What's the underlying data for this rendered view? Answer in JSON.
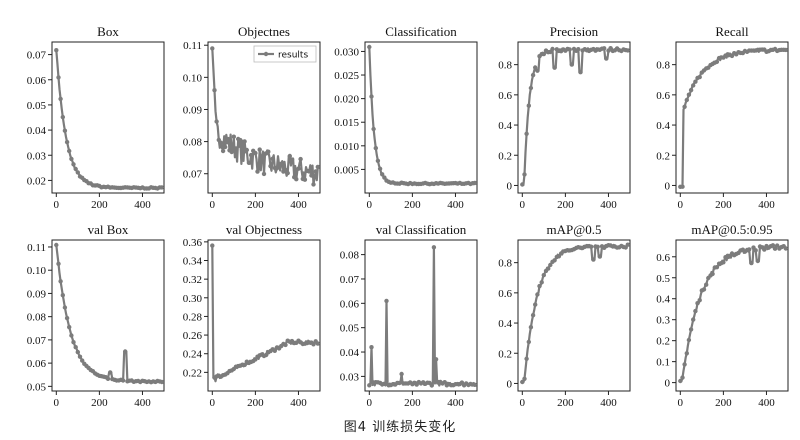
{
  "caption": "图4   训练损失变化",
  "series_color": "#7c7c7c",
  "chart_data": [
    {
      "type": "line",
      "title": "Box",
      "xlim": [
        -20,
        500
      ],
      "ylim": [
        0.015,
        0.075
      ],
      "xticks": [
        0,
        200,
        400
      ],
      "yticks": [
        0.02,
        0.03,
        0.04,
        0.05,
        0.06,
        0.07
      ],
      "yticklabels": [
        "0.02",
        "0.03",
        "0.04",
        "0.05",
        "0.06",
        "0.07"
      ],
      "model": {
        "kind": "decay",
        "start": 0.072,
        "end": 0.017,
        "tau": 45
      },
      "legend": null
    },
    {
      "type": "line",
      "title": "Objectnes",
      "xlim": [
        -20,
        500
      ],
      "ylim": [
        0.064,
        0.111
      ],
      "xticks": [
        0,
        200,
        400
      ],
      "yticks": [
        0.07,
        0.08,
        0.09,
        0.1,
        0.11
      ],
      "yticklabels": [
        "0.07",
        "0.08",
        "0.09",
        "0.10",
        "0.11"
      ],
      "model": {
        "kind": "noisy",
        "start": 0.109,
        "mid": 0.083,
        "end": 0.069,
        "tau": 200,
        "noise": 0.004
      },
      "legend": {
        "label": "results",
        "position": "top-right"
      }
    },
    {
      "type": "line",
      "title": "Classification",
      "xlim": [
        -20,
        500
      ],
      "ylim": [
        0.0,
        0.032
      ],
      "xticks": [
        0,
        200,
        400
      ],
      "yticks": [
        0.005,
        0.01,
        0.015,
        0.02,
        0.025,
        0.03
      ],
      "yticklabels": [
        "0.005",
        "0.010",
        "0.015",
        "0.020",
        "0.025",
        "0.030"
      ],
      "model": {
        "kind": "decay",
        "start": 0.031,
        "end": 0.002,
        "tau": 22
      },
      "legend": null
    },
    {
      "type": "line",
      "title": "Precision",
      "xlim": [
        -20,
        500
      ],
      "ylim": [
        -0.05,
        0.95
      ],
      "xticks": [
        0,
        200,
        400
      ],
      "yticks": [
        0,
        0.2,
        0.4,
        0.6,
        0.8
      ],
      "yticklabels": [
        "0",
        "0.2",
        "0.4",
        "0.6",
        "0.8"
      ],
      "model": {
        "kind": "rise",
        "end": 0.9,
        "tau": 25,
        "dips": [
          [
            70,
            0.76
          ],
          [
            150,
            0.78
          ],
          [
            230,
            0.8
          ],
          [
            270,
            0.75
          ],
          [
            390,
            0.84
          ]
        ]
      },
      "legend": null
    },
    {
      "type": "line",
      "title": "Recall",
      "xlim": [
        -20,
        500
      ],
      "ylim": [
        -0.05,
        0.95
      ],
      "xticks": [
        0,
        200,
        400
      ],
      "yticks": [
        0,
        0.2,
        0.4,
        0.6,
        0.8
      ],
      "yticklabels": [
        "0",
        "0.2",
        "0.4",
        "0.6",
        "0.8"
      ],
      "model": {
        "kind": "rise",
        "end": 0.9,
        "tau": 90,
        "jump": 0.5
      },
      "legend": null
    },
    {
      "type": "line",
      "title": "val Box",
      "xlim": [
        -20,
        500
      ],
      "ylim": [
        0.048,
        0.113
      ],
      "xticks": [
        0,
        200,
        400
      ],
      "yticks": [
        0.05,
        0.06,
        0.07,
        0.08,
        0.09,
        0.1,
        0.11
      ],
      "yticklabels": [
        "0.05",
        "0.06",
        "0.07",
        "0.08",
        "0.09",
        "0.10",
        "0.11"
      ],
      "model": {
        "kind": "decay",
        "start": 0.111,
        "end": 0.052,
        "tau": 65,
        "spikes": [
          [
            320,
            0.065
          ],
          [
            250,
            0.056
          ]
        ]
      },
      "legend": null
    },
    {
      "type": "line",
      "title": "val Objectness",
      "xlim": [
        -20,
        500
      ],
      "ylim": [
        0.2,
        0.362
      ],
      "xticks": [
        0,
        200,
        400
      ],
      "yticks": [
        0.22,
        0.24,
        0.26,
        0.28,
        0.3,
        0.32,
        0.34,
        0.36
      ],
      "yticklabels": [
        "0.22",
        "0.24",
        "0.26",
        "0.28",
        "0.30",
        "0.32",
        "0.34",
        "0.36"
      ],
      "model": {
        "kind": "valobj",
        "start": 0.356,
        "low": 0.215,
        "end": 0.252
      },
      "legend": null
    },
    {
      "type": "line",
      "title": "val Classification",
      "xlim": [
        -20,
        500
      ],
      "ylim": [
        0.024,
        0.086
      ],
      "xticks": [
        0,
        200,
        400
      ],
      "yticks": [
        0.03,
        0.04,
        0.05,
        0.06,
        0.07,
        0.08
      ],
      "yticklabels": [
        "0.03",
        "0.04",
        "0.05",
        "0.06",
        "0.07",
        "0.08"
      ],
      "model": {
        "kind": "flatspikes",
        "base": 0.027,
        "spikes": [
          [
            10,
            0.042
          ],
          [
            80,
            0.061
          ],
          [
            300,
            0.083
          ],
          [
            310,
            0.037
          ],
          [
            150,
            0.031
          ]
        ]
      },
      "legend": null
    },
    {
      "type": "line",
      "title": "mAP@0.5",
      "xlim": [
        -20,
        500
      ],
      "ylim": [
        -0.05,
        0.95
      ],
      "xticks": [
        0,
        200,
        400
      ],
      "yticks": [
        0,
        0.2,
        0.4,
        0.6,
        0.8
      ],
      "yticklabels": [
        "0",
        "0.2",
        "0.4",
        "0.6",
        "0.8"
      ],
      "model": {
        "kind": "rise",
        "end": 0.91,
        "tau": 60,
        "dips": [
          [
            330,
            0.82
          ],
          [
            360,
            0.84
          ]
        ]
      },
      "legend": null
    },
    {
      "type": "line",
      "title": "mAP@0.5:0.95",
      "xlim": [
        -20,
        500
      ],
      "ylim": [
        -0.04,
        0.68
      ],
      "xticks": [
        0,
        200,
        400
      ],
      "yticks": [
        0,
        0.1,
        0.2,
        0.3,
        0.4,
        0.5,
        0.6
      ],
      "yticklabels": [
        "0",
        "0.1",
        "0.2",
        "0.3",
        "0.4",
        "0.5",
        "0.6"
      ],
      "model": {
        "kind": "rise",
        "end": 0.65,
        "tau": 85,
        "dips": [
          [
            330,
            0.57
          ],
          [
            360,
            0.58
          ]
        ]
      },
      "legend": null
    }
  ]
}
